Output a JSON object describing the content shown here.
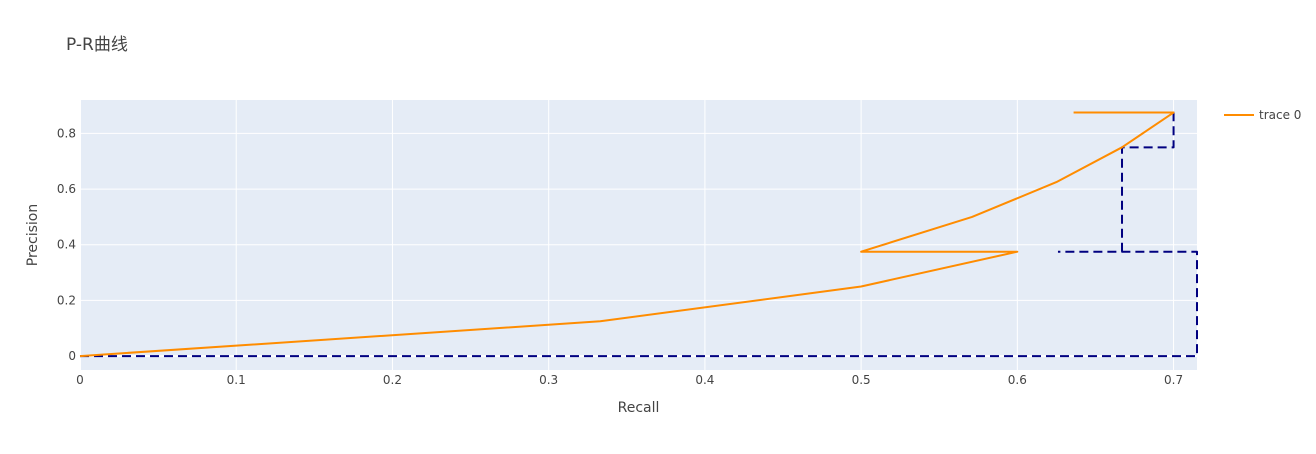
{
  "chart_data": {
    "type": "line",
    "title": "P-R曲线",
    "xlabel": "Recall",
    "ylabel": "Precision",
    "xlim": [
      0,
      0.715
    ],
    "ylim": [
      -0.05,
      0.92
    ],
    "x_ticks": [
      0,
      0.1,
      0.2,
      0.3,
      0.4,
      0.5,
      0.6,
      0.7
    ],
    "x_tick_labels": [
      "0",
      "0.1",
      "0.2",
      "0.3",
      "0.4",
      "0.5",
      "0.6",
      "0.7"
    ],
    "y_ticks": [
      0,
      0.2,
      0.4,
      0.6,
      0.8
    ],
    "y_tick_labels": [
      "0",
      "0.2",
      "0.4",
      "0.6",
      "0.8"
    ],
    "grid": true,
    "legend": {
      "position": "top-right",
      "show": true
    },
    "plot_background": "#e5ecf6",
    "series": [
      {
        "name": "trace 0",
        "color": "#ff8c00",
        "style": "solid",
        "x": [
          0,
          0.333,
          0.5,
          0.6,
          0.5,
          0.571,
          0.625,
          0.667,
          0.7,
          0.7,
          0.636
        ],
        "y": [
          0,
          0.125,
          0.25,
          0.375,
          0.375,
          0.5,
          0.625,
          0.75,
          0.875,
          0.875,
          0.875
        ]
      },
      {
        "name": "",
        "color": "#000080",
        "style": "dash",
        "x": [
          0,
          0.715,
          0.715,
          0.626,
          null,
          0.667,
          0.667,
          0.7,
          0.7,
          0.636
        ],
        "y": [
          0,
          0,
          0.375,
          0.375,
          null,
          0.375,
          0.75,
          0.75,
          0.875,
          0.875
        ]
      }
    ]
  }
}
